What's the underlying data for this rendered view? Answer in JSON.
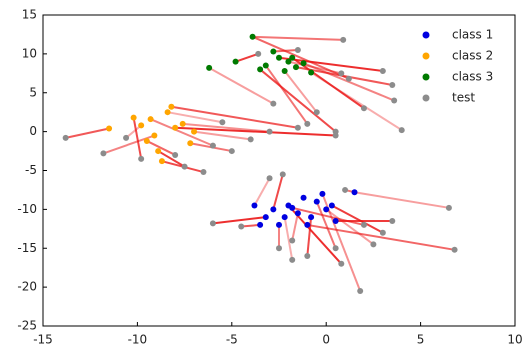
{
  "chart_data": {
    "type": "scatter",
    "xlim": [
      -15,
      10
    ],
    "ylim": [
      -25,
      15
    ],
    "xticks": [
      -15,
      -10,
      -5,
      0,
      5,
      10
    ],
    "yticks": [
      -25,
      -20,
      -15,
      -10,
      -5,
      0,
      5,
      10,
      15
    ],
    "legend": "upper right",
    "series": [
      {
        "name": "class 1",
        "color": "#0000e0",
        "x": [
          -3.8,
          -3.2,
          -2.8,
          -2.5,
          -2,
          -1.5,
          -1.2,
          -0.8,
          -0.5,
          0,
          0.5,
          -1,
          -2.2,
          -3.5,
          1.5,
          -0.2,
          -1.8,
          0.3
        ],
        "y": [
          -9.5,
          -11,
          -10,
          -12,
          -9.5,
          -10.5,
          -8.5,
          -11,
          -9,
          -10,
          -11.5,
          -12,
          -11,
          -12,
          -7.8,
          -8,
          -9.8,
          -9.5
        ]
      },
      {
        "name": "class 2",
        "color": "#ffa500",
        "x": [
          -11.5,
          -10.2,
          -9.8,
          -9.3,
          -9.1,
          -8.9,
          -8.7,
          -8.4,
          -8.2,
          -8,
          -7.6,
          -7.2,
          -7,
          -9.5
        ],
        "y": [
          0.4,
          1.8,
          0.8,
          1.6,
          -0.5,
          -2.5,
          -3.8,
          2.5,
          3.2,
          0.5,
          1,
          -1.5,
          0,
          -1.2
        ]
      },
      {
        "name": "class 3",
        "color": "#007a00",
        "x": [
          -3.9,
          -6.2,
          -4.8,
          -3.5,
          -2.8,
          -2.5,
          -2,
          -1.6,
          -1.2,
          -3.2,
          -2.2,
          -0.8,
          -1.8
        ],
        "y": [
          12.2,
          8.2,
          9,
          8,
          10.3,
          9.5,
          9,
          8.3,
          8.8,
          8.5,
          7.8,
          7.6,
          9.5
        ]
      },
      {
        "name": "test",
        "color": "#8c8c8c",
        "x": [
          -3,
          -2.3,
          1,
          6.5,
          3.5,
          6.8,
          1.8,
          -6,
          -4.5,
          -2.5,
          -1.8,
          -1,
          0.5,
          2.5,
          3,
          2,
          -1.8,
          0.8,
          -13.8,
          -11.8,
          -10.6,
          -6.5,
          -5,
          -4,
          -7.5,
          -8,
          -3,
          0.5,
          -1.5,
          -6,
          -5.5,
          -9.8,
          0.9,
          -2.8,
          -3.6,
          -1.5,
          0.8,
          3,
          3.5,
          3.6,
          4,
          0.5,
          -1,
          -0.5,
          2,
          1.2
        ],
        "y": [
          -6,
          -5.5,
          -7.5,
          -9.8,
          -11.5,
          -15.2,
          -20.5,
          -11.8,
          -12.2,
          -15,
          -16.5,
          -16,
          -15,
          -14.5,
          -13,
          -12,
          -14,
          -17,
          -0.8,
          -2.8,
          -0.8,
          -5.2,
          -2.5,
          -1,
          -4.5,
          -3,
          0,
          -0.5,
          0.5,
          -1.8,
          1.2,
          -3.5,
          11.8,
          3.6,
          10,
          10.5,
          7.5,
          7.8,
          6,
          4,
          0.2,
          0,
          1,
          2.5,
          3,
          6.8
        ]
      }
    ],
    "links": [
      [
        0,
        0
      ],
      [
        0,
        2
      ],
      [
        0,
        14
      ],
      [
        0,
        14
      ],
      [
        0,
        10
      ],
      [
        0,
        11
      ],
      [
        0,
        15
      ],
      [
        0,
        1
      ],
      [
        0,
        13
      ],
      [
        0,
        3
      ],
      [
        0,
        12
      ],
      [
        0,
        7
      ],
      [
        0,
        8
      ],
      [
        0,
        9
      ],
      [
        0,
        17
      ],
      [
        0,
        16
      ],
      [
        0,
        5
      ],
      [
        0,
        4
      ],
      [
        1,
        0
      ],
      [
        1,
        4
      ],
      [
        1,
        2
      ],
      [
        1,
        6
      ],
      [
        1,
        11
      ],
      [
        1,
        12
      ],
      [
        1,
        5
      ],
      [
        1,
        13
      ],
      [
        1,
        10
      ],
      [
        1,
        9
      ],
      [
        1,
        8
      ],
      [
        1,
        3
      ],
      [
        1,
        7
      ],
      [
        1,
        1
      ],
      [
        2,
        0
      ],
      [
        2,
        1
      ],
      [
        2,
        2
      ],
      [
        2,
        4
      ],
      [
        2,
        6
      ],
      [
        2,
        5
      ],
      [
        2,
        7
      ],
      [
        2,
        8
      ],
      [
        2,
        11
      ],
      [
        2,
        3
      ],
      [
        2,
        9
      ],
      [
        2,
        10
      ],
      [
        2,
        12
      ],
      [
        2,
        0
      ]
    ]
  }
}
